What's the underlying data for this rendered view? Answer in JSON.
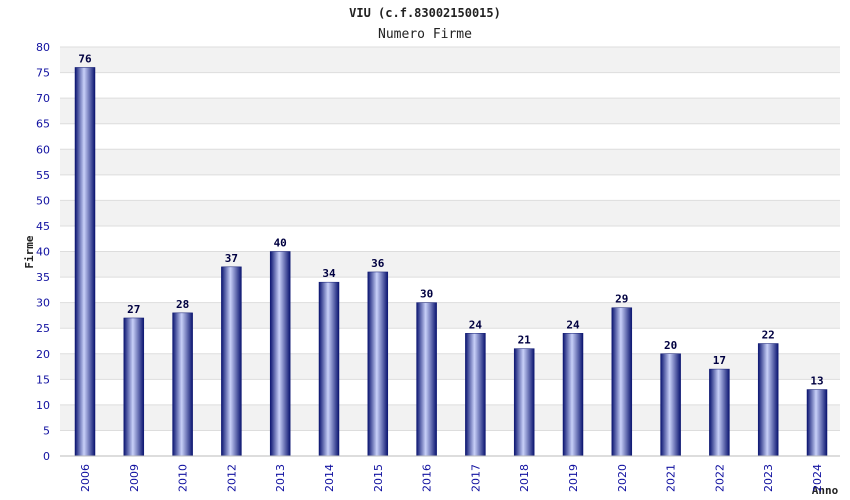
{
  "chart_data": {
    "type": "bar",
    "title": "VIU (c.f.83002150015)",
    "subtitle": "Numero Firme",
    "xlabel": "Anno",
    "ylabel": "Firme",
    "ylim": [
      0,
      80
    ],
    "ytick_step": 5,
    "grid": true,
    "categories": [
      "2006",
      "2009",
      "2010",
      "2012",
      "2013",
      "2014",
      "2015",
      "2016",
      "2017",
      "2018",
      "2019",
      "2020",
      "2021",
      "2022",
      "2023",
      "2024"
    ],
    "values": [
      76,
      27,
      28,
      37,
      40,
      34,
      36,
      30,
      24,
      21,
      24,
      29,
      20,
      17,
      22,
      13
    ],
    "colors": {
      "bar_dark": "#101a80",
      "bar_light": "#c8d0f8",
      "band": "#f2f2f2",
      "tick_text": "#1010a0"
    }
  }
}
